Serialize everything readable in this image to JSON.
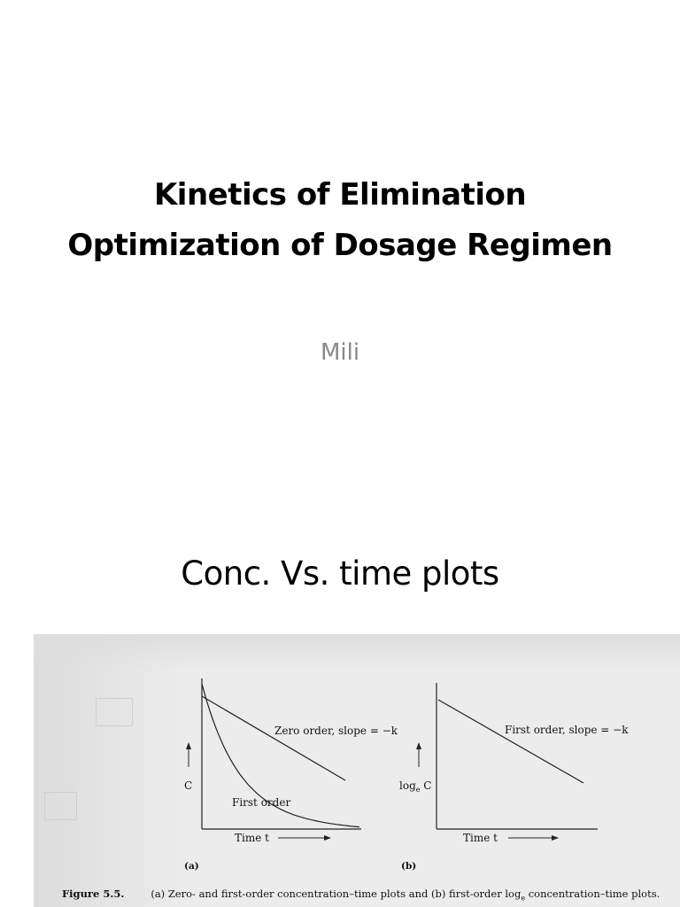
{
  "slide1": {
    "title_line1": "Kinetics of Elimination",
    "title_line2": "Optimization of Dosage Regimen",
    "author": "Mili"
  },
  "slide2": {
    "title": "Conc. Vs. time plots"
  },
  "figure": {
    "label": "Figure 5.5.",
    "caption": "(a) Zero- and first-order concentration–time plots and (b) first-order log",
    "caption_sub": "e",
    "caption_tail": " concentration–time plots."
  },
  "chart_data": [
    {
      "type": "line",
      "panel_label": "(a)",
      "xlabel": "Time t",
      "ylabel": "C",
      "annotations": [
        "Zero order, slope = −k",
        "First order"
      ],
      "series": [
        {
          "name": "Zero order, slope = −k",
          "shape": "linear decline"
        },
        {
          "name": "First order",
          "shape": "exponential decay"
        }
      ]
    },
    {
      "type": "line",
      "panel_label": "(b)",
      "xlabel": "Time t",
      "ylabel": "log",
      "ylabel_sub": "e",
      "ylabel_tail": " C",
      "annotations": [
        "First order, slope = −k"
      ],
      "series": [
        {
          "name": "First order, slope = −k",
          "shape": "linear decline"
        }
      ]
    }
  ]
}
